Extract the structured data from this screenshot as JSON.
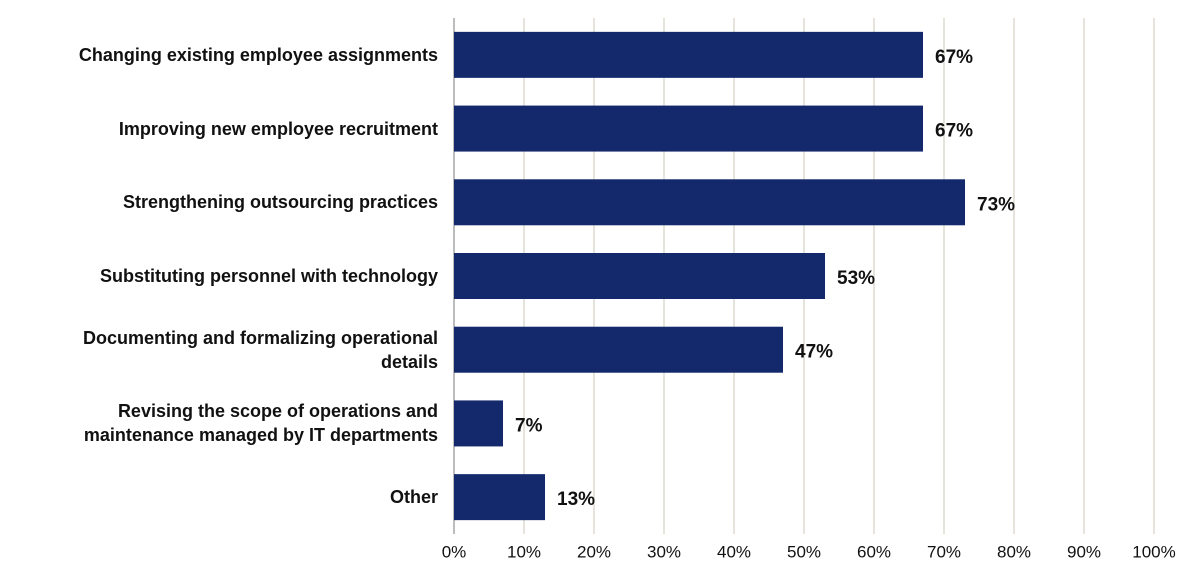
{
  "chart_data": {
    "type": "bar",
    "orientation": "horizontal",
    "categories": [
      "Changing existing employee assignments",
      "Improving new employee recruitment",
      "Strengthening outsourcing practices",
      "Substituting personnel with technology",
      "Documenting and formalizing operational details",
      "Revising the scope of operations and maintenance managed by IT departments",
      "Other"
    ],
    "values": [
      67,
      67,
      73,
      53,
      47,
      7,
      13
    ],
    "value_labels": [
      "67%",
      "67%",
      "73%",
      "53%",
      "47%",
      "7%",
      "13%"
    ],
    "color": "#14296b",
    "xlim": [
      0,
      100
    ],
    "xticks": [
      {
        "value": 0,
        "label": "0%"
      },
      {
        "value": 10,
        "label": "10%"
      },
      {
        "value": 20,
        "label": "20%"
      },
      {
        "value": 30,
        "label": "30%"
      },
      {
        "value": 40,
        "label": "40%"
      },
      {
        "value": 50,
        "label": "50%"
      },
      {
        "value": 60,
        "label": "60%"
      },
      {
        "value": 70,
        "label": "70%"
      },
      {
        "value": 80,
        "label": "80%"
      },
      {
        "value": 90,
        "label": "90%"
      },
      {
        "value": 100,
        "label": "100%"
      }
    ],
    "grid": true
  }
}
